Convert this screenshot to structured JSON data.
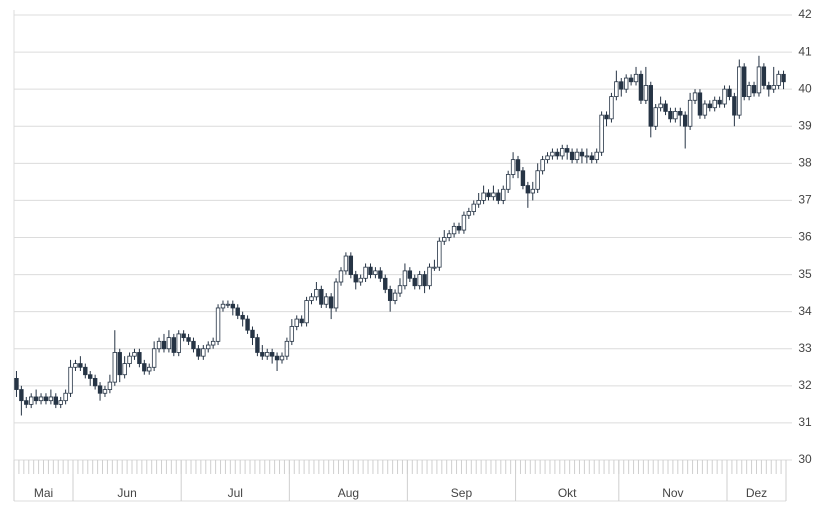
{
  "chart_data": {
    "type": "candlestick",
    "categories": [
      "Mai",
      null,
      null,
      null,
      null,
      null,
      null,
      null,
      null,
      null,
      null,
      null,
      "Jun",
      null,
      null,
      null,
      null,
      null,
      null,
      null,
      null,
      null,
      null,
      null,
      null,
      null,
      null,
      null,
      null,
      null,
      null,
      null,
      null,
      null,
      "Jul",
      null,
      null,
      null,
      null,
      null,
      null,
      null,
      null,
      null,
      null,
      null,
      null,
      null,
      null,
      null,
      null,
      null,
      null,
      null,
      null,
      null,
      "Aug",
      null,
      null,
      null,
      null,
      null,
      null,
      null,
      null,
      null,
      null,
      null,
      null,
      null,
      null,
      null,
      null,
      null,
      null,
      null,
      null,
      null,
      null,
      null,
      "Sep",
      null,
      null,
      null,
      null,
      null,
      null,
      null,
      null,
      null,
      null,
      null,
      null,
      null,
      null,
      null,
      null,
      null,
      null,
      null,
      null,
      null,
      "Okt",
      null,
      null,
      null,
      null,
      null,
      null,
      null,
      null,
      null,
      null,
      null,
      null,
      null,
      null,
      null,
      null,
      null,
      null,
      null,
      null,
      "Nov",
      null,
      null,
      null,
      null,
      null,
      null,
      null,
      null,
      null,
      null,
      null,
      null,
      null,
      null,
      null,
      null,
      null,
      null,
      null,
      null,
      null,
      "Dez",
      null,
      null,
      null,
      null,
      null,
      null,
      null,
      null,
      null,
      null,
      null
    ],
    "open": [
      32.2,
      31.9,
      31.6,
      31.5,
      31.7,
      31.6,
      31.7,
      31.6,
      31.7,
      31.5,
      31.6,
      31.8,
      32.5,
      32.6,
      32.5,
      32.3,
      32.2,
      32.0,
      31.8,
      31.9,
      32.1,
      32.9,
      32.3,
      32.6,
      32.8,
      32.9,
      32.6,
      32.4,
      32.5,
      33.0,
      33.2,
      33.0,
      33.3,
      32.9,
      33.4,
      33.3,
      33.2,
      33.0,
      32.8,
      33.0,
      33.1,
      33.2,
      34.1,
      34.2,
      34.2,
      34.1,
      33.9,
      33.8,
      33.5,
      33.3,
      32.9,
      32.8,
      32.9,
      32.8,
      32.7,
      32.8,
      33.2,
      33.6,
      33.8,
      33.7,
      34.3,
      34.4,
      34.6,
      34.2,
      34.4,
      34.1,
      34.8,
      35.1,
      35.5,
      35.0,
      34.8,
      34.9,
      35.2,
      35.0,
      35.1,
      34.9,
      34.6,
      34.3,
      34.5,
      34.7,
      35.1,
      34.9,
      34.7,
      35.0,
      34.7,
      35.2,
      35.2,
      35.9,
      36.0,
      36.1,
      36.3,
      36.2,
      36.6,
      36.7,
      36.9,
      37.0,
      37.2,
      37.1,
      37.2,
      37.0,
      37.3,
      37.7,
      38.1,
      37.8,
      37.4,
      37.2,
      37.3,
      37.8,
      38.1,
      38.2,
      38.3,
      38.2,
      38.4,
      38.3,
      38.1,
      38.3,
      38.2,
      38.2,
      38.1,
      38.3,
      39.3,
      39.2,
      39.8,
      40.2,
      40.0,
      40.3,
      40.2,
      40.4,
      39.7,
      40.1,
      39.0,
      39.5,
      39.6,
      39.4,
      39.2,
      39.4,
      39.3,
      39.0,
      39.7,
      39.9,
      39.3,
      39.6,
      39.5,
      39.7,
      39.6,
      40.0,
      39.8,
      39.3,
      40.6,
      39.8,
      40.1,
      39.9,
      40.6,
      40.1,
      40.0,
      40.1,
      40.4
    ],
    "high": [
      32.4,
      32.0,
      31.7,
      31.8,
      31.9,
      31.8,
      31.8,
      31.9,
      31.8,
      31.7,
      31.9,
      32.7,
      32.7,
      32.8,
      32.6,
      32.4,
      32.3,
      32.1,
      32.0,
      32.3,
      33.5,
      33.0,
      32.8,
      32.9,
      33.0,
      33.0,
      32.7,
      32.6,
      33.2,
      33.3,
      33.4,
      33.5,
      33.4,
      33.5,
      33.5,
      33.4,
      33.3,
      33.1,
      33.1,
      33.2,
      33.3,
      34.2,
      34.3,
      34.3,
      34.3,
      34.2,
      34.0,
      33.9,
      33.6,
      33.4,
      33.1,
      33.0,
      33.0,
      32.9,
      32.9,
      33.3,
      33.8,
      33.9,
      33.9,
      34.4,
      34.5,
      34.8,
      34.7,
      34.5,
      34.5,
      34.9,
      35.2,
      35.6,
      35.6,
      35.1,
      35.0,
      35.3,
      35.3,
      35.2,
      35.2,
      35.0,
      34.7,
      34.6,
      34.9,
      35.3,
      35.2,
      35.0,
      35.1,
      35.1,
      35.3,
      35.4,
      36.0,
      36.2,
      36.2,
      36.4,
      36.4,
      36.7,
      36.8,
      37.0,
      37.2,
      37.4,
      37.3,
      37.4,
      37.3,
      37.4,
      37.8,
      38.3,
      38.2,
      37.9,
      37.5,
      37.5,
      38.0,
      38.2,
      38.3,
      38.4,
      38.4,
      38.5,
      38.5,
      38.4,
      38.4,
      38.4,
      38.4,
      38.3,
      38.4,
      39.4,
      39.4,
      39.9,
      40.5,
      40.3,
      40.4,
      40.4,
      40.6,
      40.5,
      40.6,
      40.2,
      39.6,
      39.8,
      39.7,
      39.5,
      39.5,
      39.5,
      39.4,
      39.9,
      40.0,
      40.0,
      39.7,
      39.7,
      39.8,
      39.8,
      40.1,
      40.1,
      39.9,
      40.8,
      40.7,
      40.2,
      40.2,
      40.9,
      40.7,
      40.2,
      40.6,
      40.5,
      40.5
    ],
    "low": [
      31.7,
      31.2,
      31.4,
      31.4,
      31.5,
      31.5,
      31.5,
      31.5,
      31.4,
      31.4,
      31.5,
      31.7,
      32.4,
      32.4,
      32.2,
      32.0,
      31.9,
      31.6,
      31.7,
      31.8,
      32.0,
      32.1,
      32.2,
      32.5,
      32.7,
      32.5,
      32.3,
      32.3,
      32.4,
      32.9,
      32.9,
      32.9,
      32.8,
      32.8,
      33.2,
      33.1,
      32.9,
      32.7,
      32.7,
      32.9,
      33.0,
      33.1,
      34.0,
      34.1,
      33.9,
      33.8,
      33.6,
      33.4,
      33.1,
      32.8,
      32.7,
      32.7,
      32.6,
      32.4,
      32.6,
      32.7,
      33.1,
      33.5,
      33.6,
      33.6,
      34.2,
      34.3,
      34.1,
      34.1,
      33.8,
      34.0,
      34.7,
      35.0,
      34.9,
      34.6,
      34.7,
      34.8,
      34.9,
      34.9,
      34.8,
      34.5,
      34.0,
      34.2,
      34.4,
      34.6,
      34.8,
      34.6,
      34.6,
      34.5,
      34.6,
      35.1,
      35.1,
      35.8,
      35.9,
      36.0,
      36.1,
      36.1,
      36.5,
      36.6,
      36.8,
      36.9,
      37.0,
      37.0,
      36.9,
      36.9,
      37.2,
      37.6,
      37.6,
      37.3,
      36.8,
      37.0,
      37.2,
      37.7,
      38.0,
      38.1,
      38.1,
      38.1,
      38.1,
      38.0,
      38.0,
      38.0,
      38.0,
      38.0,
      38.0,
      38.2,
      39.0,
      39.1,
      39.7,
      39.8,
      39.9,
      40.1,
      40.1,
      39.6,
      39.6,
      38.7,
      38.9,
      39.4,
      39.3,
      39.1,
      39.1,
      39.0,
      38.4,
      38.9,
      39.6,
      39.2,
      39.2,
      39.4,
      39.4,
      39.5,
      39.5,
      39.7,
      39.0,
      39.2,
      39.7,
      39.7,
      39.8,
      39.8,
      40.0,
      39.8,
      39.9,
      40.0,
      40.0
    ],
    "close": [
      31.9,
      31.6,
      31.5,
      31.7,
      31.6,
      31.7,
      31.6,
      31.7,
      31.5,
      31.6,
      31.8,
      32.5,
      32.6,
      32.5,
      32.3,
      32.2,
      32.0,
      31.8,
      31.9,
      32.1,
      32.9,
      32.3,
      32.6,
      32.8,
      32.9,
      32.6,
      32.4,
      32.5,
      33.0,
      33.2,
      33.0,
      33.3,
      32.9,
      33.4,
      33.3,
      33.2,
      33.0,
      32.8,
      33.0,
      33.1,
      33.2,
      34.1,
      34.2,
      34.2,
      34.1,
      33.9,
      33.8,
      33.5,
      33.3,
      32.9,
      32.8,
      32.9,
      32.8,
      32.7,
      32.8,
      33.2,
      33.6,
      33.8,
      33.7,
      34.3,
      34.4,
      34.6,
      34.2,
      34.4,
      34.1,
      34.8,
      35.1,
      35.5,
      35.0,
      34.8,
      34.9,
      35.2,
      35.0,
      35.1,
      34.9,
      34.6,
      34.3,
      34.5,
      34.7,
      35.1,
      34.9,
      34.7,
      35.0,
      34.7,
      35.2,
      35.2,
      35.9,
      36.0,
      36.1,
      36.3,
      36.2,
      36.6,
      36.7,
      36.9,
      37.0,
      37.2,
      37.1,
      37.2,
      37.0,
      37.3,
      37.7,
      38.1,
      37.8,
      37.4,
      37.2,
      37.3,
      37.8,
      38.1,
      38.2,
      38.3,
      38.2,
      38.4,
      38.3,
      38.1,
      38.3,
      38.2,
      38.2,
      38.1,
      38.3,
      39.3,
      39.2,
      39.8,
      40.2,
      40.0,
      40.3,
      40.2,
      40.4,
      39.7,
      40.1,
      39.0,
      39.5,
      39.6,
      39.4,
      39.2,
      39.4,
      39.3,
      39.0,
      39.7,
      39.9,
      39.3,
      39.6,
      39.5,
      39.7,
      39.6,
      40.0,
      39.8,
      39.3,
      40.6,
      39.8,
      40.1,
      39.9,
      40.6,
      40.1,
      40.0,
      40.1,
      40.4,
      40.2
    ],
    "up_color": "#ffffff",
    "down_color": "#263445",
    "outline_color": "#263445",
    "ylim": [
      30,
      42
    ],
    "yticks": [
      30,
      31,
      32,
      33,
      34,
      35,
      36,
      37,
      38,
      39,
      40,
      41,
      42
    ],
    "grid": true
  }
}
